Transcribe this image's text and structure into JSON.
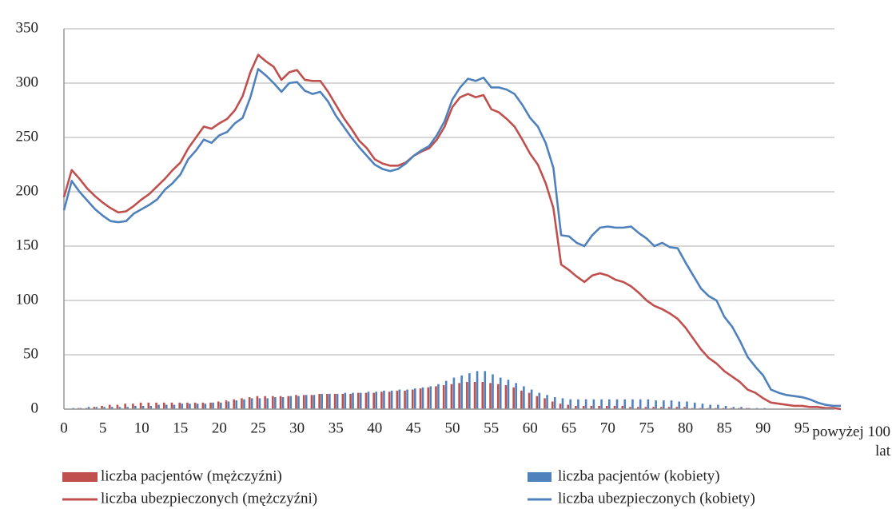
{
  "chart_data": {
    "type": "combo",
    "categories": [
      "0",
      null,
      null,
      null,
      null,
      "5",
      null,
      null,
      null,
      null,
      "10",
      null,
      null,
      null,
      null,
      "15",
      null,
      null,
      null,
      null,
      "20",
      null,
      null,
      null,
      null,
      "25",
      null,
      null,
      null,
      null,
      "30",
      null,
      null,
      null,
      null,
      "35",
      null,
      null,
      null,
      null,
      "40",
      null,
      null,
      null,
      null,
      "45",
      null,
      null,
      null,
      null,
      "50",
      null,
      null,
      null,
      null,
      "55",
      null,
      null,
      null,
      null,
      "60",
      null,
      null,
      null,
      null,
      "65",
      null,
      null,
      null,
      null,
      "70",
      null,
      null,
      null,
      null,
      "75",
      null,
      null,
      null,
      null,
      "80",
      null,
      null,
      null,
      null,
      "85",
      null,
      null,
      null,
      null,
      "90",
      null,
      null,
      null,
      null,
      "95",
      null,
      null,
      null,
      null,
      "powyżej 100 lat"
    ],
    "ylim": [
      0,
      350
    ],
    "yticks": [
      0,
      50,
      100,
      150,
      200,
      250,
      300,
      350
    ],
    "grid": true,
    "series": [
      {
        "name": "liczba pacjentów (mężczyźni)",
        "type": "bar",
        "color": "#c0504d",
        "values": [
          0,
          0,
          1,
          1,
          2,
          3,
          4,
          4,
          5,
          5,
          6,
          6,
          6,
          6,
          6,
          6,
          6,
          6,
          6,
          6,
          7,
          8,
          9,
          10,
          11,
          12,
          12,
          12,
          12,
          12,
          13,
          13,
          13,
          14,
          14,
          14,
          14,
          14,
          15,
          15,
          15,
          16,
          16,
          17,
          17,
          18,
          19,
          20,
          21,
          22,
          23,
          24,
          25,
          25,
          25,
          24,
          23,
          22,
          20,
          17,
          15,
          12,
          10,
          7,
          5,
          4,
          3,
          3,
          3,
          3,
          3,
          3,
          3,
          2,
          2,
          2,
          2,
          2,
          2,
          2,
          2,
          1,
          1,
          1,
          1,
          1,
          1,
          1,
          1,
          0,
          0,
          0,
          0,
          0,
          0,
          0,
          0,
          0,
          0,
          0,
          0
        ]
      },
      {
        "name": "liczba pacjentów (kobiety)",
        "type": "bar",
        "color": "#4f81bd",
        "values": [
          0,
          1,
          1,
          2,
          2,
          2,
          2,
          2,
          2,
          3,
          3,
          3,
          4,
          4,
          4,
          5,
          5,
          5,
          5,
          6,
          6,
          7,
          8,
          9,
          10,
          10,
          10,
          11,
          11,
          12,
          12,
          13,
          13,
          14,
          14,
          14,
          15,
          15,
          15,
          16,
          16,
          17,
          17,
          18,
          18,
          19,
          20,
          21,
          23,
          26,
          29,
          31,
          33,
          35,
          35,
          32,
          29,
          27,
          24,
          21,
          18,
          15,
          13,
          11,
          10,
          9,
          9,
          9,
          9,
          9,
          9,
          9,
          9,
          9,
          9,
          9,
          8,
          8,
          8,
          7,
          7,
          6,
          5,
          4,
          4,
          3,
          2,
          2,
          1,
          1,
          1,
          0,
          0,
          0,
          0,
          0,
          0,
          0,
          0,
          0,
          0
        ]
      },
      {
        "name": "liczba ubezpieczonych (mężczyźni)",
        "type": "line",
        "color": "#c0504d",
        "values": [
          195,
          220,
          212,
          203,
          196,
          190,
          185,
          181,
          182,
          187,
          193,
          198,
          205,
          212,
          220,
          227,
          240,
          250,
          260,
          258,
          263,
          267,
          275,
          288,
          310,
          326,
          320,
          315,
          303,
          310,
          312,
          303,
          302,
          302,
          292,
          280,
          268,
          258,
          247,
          240,
          230,
          226,
          224,
          224,
          227,
          233,
          237,
          240,
          248,
          260,
          278,
          287,
          290,
          287,
          289,
          276,
          273,
          267,
          260,
          248,
          235,
          225,
          208,
          185,
          133,
          128,
          122,
          117,
          123,
          125,
          123,
          119,
          117,
          113,
          107,
          100,
          95,
          92,
          88,
          83,
          75,
          65,
          55,
          47,
          42,
          35,
          30,
          25,
          18,
          15,
          10,
          6,
          5,
          4,
          3,
          3,
          2,
          2,
          1,
          1,
          0
        ]
      },
      {
        "name": "liczba ubezpieczonych (kobiety)",
        "type": "line",
        "color": "#4f81bd",
        "values": [
          183,
          210,
          200,
          192,
          184,
          178,
          173,
          172,
          173,
          180,
          184,
          188,
          193,
          202,
          208,
          216,
          230,
          238,
          248,
          245,
          252,
          255,
          263,
          268,
          287,
          313,
          307,
          300,
          292,
          300,
          301,
          293,
          290,
          292,
          283,
          270,
          260,
          250,
          241,
          233,
          225,
          221,
          219,
          221,
          226,
          233,
          238,
          242,
          252,
          265,
          285,
          296,
          304,
          302,
          305,
          296,
          296,
          294,
          290,
          280,
          268,
          260,
          245,
          222,
          160,
          159,
          153,
          150,
          160,
          167,
          168,
          167,
          167,
          168,
          162,
          157,
          150,
          153,
          149,
          148,
          135,
          123,
          111,
          104,
          100,
          85,
          76,
          63,
          48,
          39,
          31,
          18,
          15,
          13,
          12,
          11,
          9,
          6,
          4,
          3,
          3
        ]
      }
    ]
  }
}
